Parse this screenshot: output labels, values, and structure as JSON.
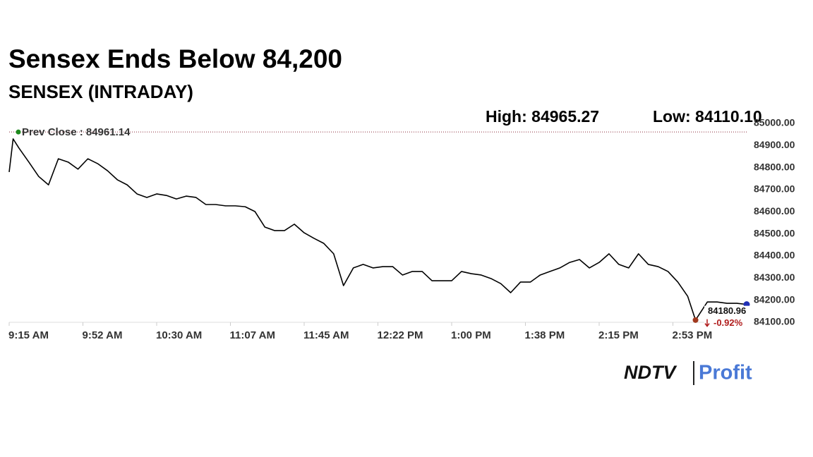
{
  "chart_data": {
    "type": "line",
    "title": "Sensex Ends Below 84,200",
    "subtitle": "SENSEX (INTRADAY)",
    "high": {
      "value": 84965.27,
      "label": "High: 84965.27"
    },
    "low": {
      "value": 84110.1,
      "label": "Low: 84110.10",
      "x": "15:04"
    },
    "prev_close": {
      "value": 84961.14,
      "label": "Prev Close : 84961.14",
      "color": "#8b2a3a"
    },
    "last": {
      "value": 84180.96,
      "change": {
        "value": -0.92,
        "label": "-0.92%"
      }
    },
    "x": [
      "09:15",
      "09:17",
      "09:20",
      "09:25",
      "09:30",
      "09:35",
      "09:40",
      "09:45",
      "09:50",
      "09:55",
      "10:00",
      "10:05",
      "10:10",
      "10:15",
      "10:20",
      "10:25",
      "10:30",
      "10:35",
      "10:40",
      "10:45",
      "10:50",
      "10:55",
      "11:00",
      "11:05",
      "11:10",
      "11:15",
      "11:20",
      "11:25",
      "11:30",
      "11:35",
      "11:40",
      "11:45",
      "11:50",
      "11:55",
      "12:00",
      "12:05",
      "12:10",
      "12:15",
      "12:20",
      "12:25",
      "12:30",
      "12:35",
      "12:40",
      "12:45",
      "12:50",
      "12:55",
      "13:00",
      "13:05",
      "13:10",
      "13:15",
      "13:20",
      "13:25",
      "13:30",
      "13:35",
      "13:40",
      "13:45",
      "13:50",
      "13:55",
      "14:00",
      "14:05",
      "14:10",
      "14:15",
      "14:20",
      "14:25",
      "14:30",
      "14:35",
      "14:40",
      "14:45",
      "14:50",
      "14:55",
      "15:00",
      "15:04",
      "15:10",
      "15:15",
      "15:20",
      "15:25",
      "15:30"
    ],
    "series": [
      {
        "name": "SENSEX",
        "color": "#000000",
        "values": [
          84780,
          84930,
          84888,
          84825,
          84760,
          84722,
          84840,
          84825,
          84793,
          84840,
          84818,
          84786,
          84745,
          84722,
          84681,
          84665,
          84681,
          84674,
          84658,
          84671,
          84665,
          84633,
          84633,
          84627,
          84627,
          84623,
          84601,
          84531,
          84515,
          84515,
          84544,
          84505,
          84480,
          84457,
          84410,
          84266,
          84346,
          84362,
          84346,
          84352,
          84352,
          84314,
          84330,
          84330,
          84288,
          84288,
          84288,
          84330,
          84320,
          84314,
          84298,
          84275,
          84234,
          84282,
          84282,
          84314,
          84330,
          84346,
          84371,
          84384,
          84346,
          84371,
          84410,
          84362,
          84346,
          84410,
          84362,
          84352,
          84330,
          84282,
          84218,
          84110.1,
          84192,
          84192,
          84186,
          84186,
          84180.96
        ]
      }
    ],
    "xlim": [
      "09:15",
      "15:30"
    ],
    "xticks": [
      {
        "value": "09:15",
        "label": "9:15 AM"
      },
      {
        "value": "09:52:30",
        "label": "9:52 AM"
      },
      {
        "value": "10:30",
        "label": "10:30 AM"
      },
      {
        "value": "11:07:30",
        "label": "11:07 AM"
      },
      {
        "value": "11:45",
        "label": "11:45 AM"
      },
      {
        "value": "12:22:30",
        "label": "12:22 PM"
      },
      {
        "value": "13:00",
        "label": "1:00 PM"
      },
      {
        "value": "13:37:30",
        "label": "1:38 PM"
      },
      {
        "value": "14:15",
        "label": "2:15 PM"
      },
      {
        "value": "14:52:30",
        "label": "2:53 PM"
      }
    ],
    "ylim": [
      84100,
      85000
    ],
    "yticks": [
      {
        "value": 84100,
        "label": "84100.00"
      },
      {
        "value": 84200,
        "label": "84200.00"
      },
      {
        "value": 84300,
        "label": "84300.00"
      },
      {
        "value": 84400,
        "label": "84400.00"
      },
      {
        "value": 84500,
        "label": "84500.00"
      },
      {
        "value": 84600,
        "label": "84600.00"
      },
      {
        "value": 84700,
        "label": "84700.00"
      },
      {
        "value": 84800,
        "label": "84800.00"
      },
      {
        "value": 84900,
        "label": "84900.00"
      },
      {
        "value": 85000,
        "label": "85000.00"
      }
    ],
    "grid": false
  },
  "brand": {
    "name": "NDTV",
    "product": "Profit"
  }
}
